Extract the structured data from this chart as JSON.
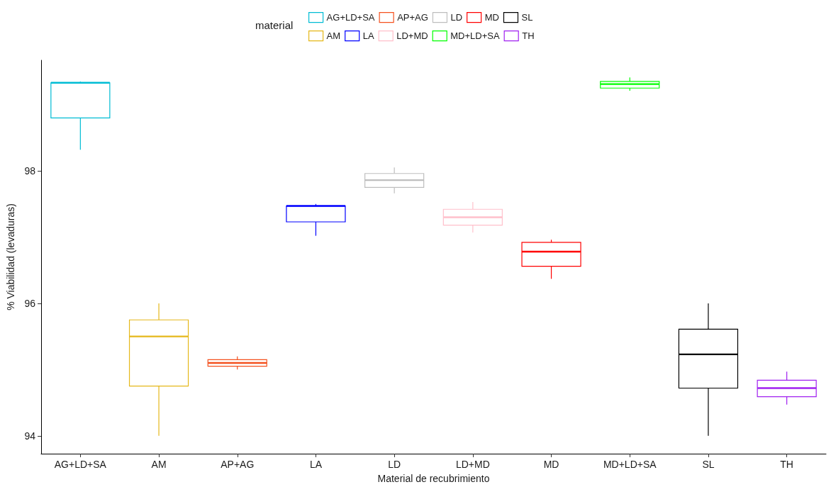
{
  "chart_data": {
    "type": "box",
    "xlabel": "Material de recubrimiento",
    "ylabel": "% Viabilidad (levaduras)",
    "legend_title": "material",
    "legend": "top",
    "categories": [
      "AG+LD+SA",
      "AM",
      "AP+AG",
      "LA",
      "LD",
      "LD+MD",
      "MD",
      "MD+LD+SA",
      "SL",
      "TH"
    ],
    "ylim": [
      93.73,
      99.67
    ],
    "yticks": [
      94,
      96,
      98
    ],
    "grid": false,
    "series": [
      {
        "name": "AG+LD+SA",
        "color": "#00bcd4",
        "boxes": [
          {
            "low": 98.32,
            "q1": 98.8,
            "median": 99.33,
            "q3": 99.33,
            "high": 99.35
          },
          null,
          null,
          null,
          null,
          null,
          null,
          null,
          null,
          null
        ]
      },
      {
        "name": "AM",
        "color": "#e5b81a",
        "boxes": [
          null,
          {
            "low": 94.0,
            "q1": 94.75,
            "median": 95.5,
            "q3": 95.75,
            "high": 96.0
          },
          null,
          null,
          null,
          null,
          null,
          null,
          null,
          null
        ]
      },
      {
        "name": "AP+AG",
        "color": "#f4511e",
        "boxes": [
          null,
          null,
          {
            "low": 95.0,
            "q1": 95.05,
            "median": 95.1,
            "q3": 95.15,
            "high": 95.2
          },
          null,
          null,
          null,
          null,
          null,
          null,
          null
        ]
      },
      {
        "name": "LA",
        "color": "#0000ff",
        "boxes": [
          null,
          null,
          null,
          {
            "low": 97.02,
            "q1": 97.23,
            "median": 97.47,
            "q3": 97.47,
            "high": 97.5
          },
          null,
          null,
          null,
          null,
          null,
          null
        ]
      },
      {
        "name": "LD",
        "color": "#bebebe",
        "boxes": [
          null,
          null,
          null,
          null,
          {
            "low": 97.66,
            "q1": 97.75,
            "median": 97.86,
            "q3": 97.96,
            "high": 98.05
          },
          null,
          null,
          null,
          null,
          null
        ]
      },
      {
        "name": "LD+MD",
        "color": "#ffc0cb",
        "boxes": [
          null,
          null,
          null,
          null,
          null,
          {
            "low": 97.07,
            "q1": 97.18,
            "median": 97.3,
            "q3": 97.42,
            "high": 97.53
          },
          null,
          null,
          null,
          null
        ]
      },
      {
        "name": "MD",
        "color": "#ff0000",
        "boxes": [
          null,
          null,
          null,
          null,
          null,
          null,
          {
            "low": 96.37,
            "q1": 96.56,
            "median": 96.78,
            "q3": 96.92,
            "high": 96.96
          },
          null,
          null,
          null
        ]
      },
      {
        "name": "MD+LD+SA",
        "color": "#00ff00",
        "boxes": [
          null,
          null,
          null,
          null,
          null,
          null,
          null,
          {
            "low": 99.21,
            "q1": 99.25,
            "median": 99.31,
            "q3": 99.35,
            "high": 99.41
          },
          null,
          null
        ]
      },
      {
        "name": "SL",
        "color": "#000000",
        "boxes": [
          null,
          null,
          null,
          null,
          null,
          null,
          null,
          null,
          {
            "low": 94.0,
            "q1": 94.72,
            "median": 95.23,
            "q3": 95.61,
            "high": 96.0
          },
          null
        ]
      },
      {
        "name": "TH",
        "color": "#a020f0",
        "boxes": [
          null,
          null,
          null,
          null,
          null,
          null,
          null,
          null,
          null,
          {
            "low": 94.47,
            "q1": 94.59,
            "median": 94.72,
            "q3": 94.84,
            "high": 94.97
          }
        ]
      }
    ]
  }
}
